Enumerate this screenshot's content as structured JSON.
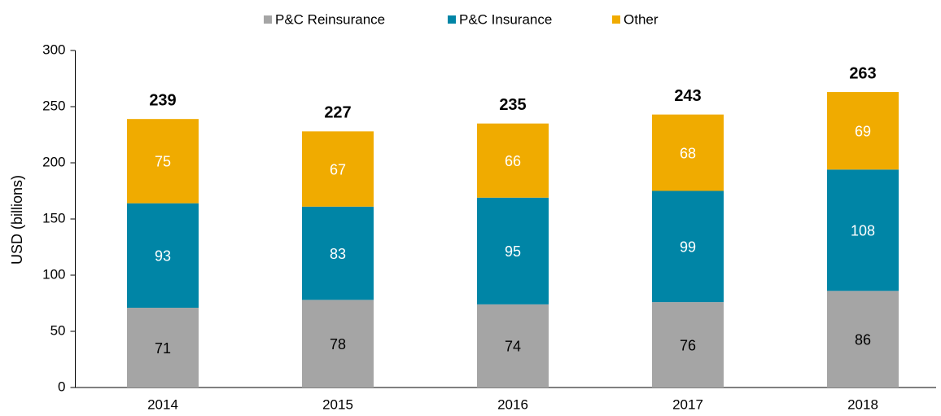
{
  "chart_data": {
    "type": "stacked_bar",
    "categories": [
      "2014",
      "2015",
      "2016",
      "2017",
      "2018"
    ],
    "series": [
      {
        "name": "P&C Reinsurance",
        "color": "#a5a5a5",
        "label_color": "#000000",
        "values": [
          71,
          78,
          74,
          76,
          86
        ]
      },
      {
        "name": "P&C Insurance",
        "color": "#0085a6",
        "label_color": "#ffffff",
        "values": [
          93,
          83,
          95,
          99,
          108
        ]
      },
      {
        "name": "Other",
        "color": "#f0ab00",
        "label_color": "#ffffff",
        "values": [
          75,
          67,
          66,
          68,
          69
        ]
      }
    ],
    "totals": [
      239,
      227,
      235,
      243,
      263
    ],
    "y_label": "USD (billions)",
    "ylim": [
      0,
      300
    ],
    "yticks": [
      0,
      50,
      100,
      150,
      200,
      250,
      300
    ],
    "legend": "top"
  }
}
